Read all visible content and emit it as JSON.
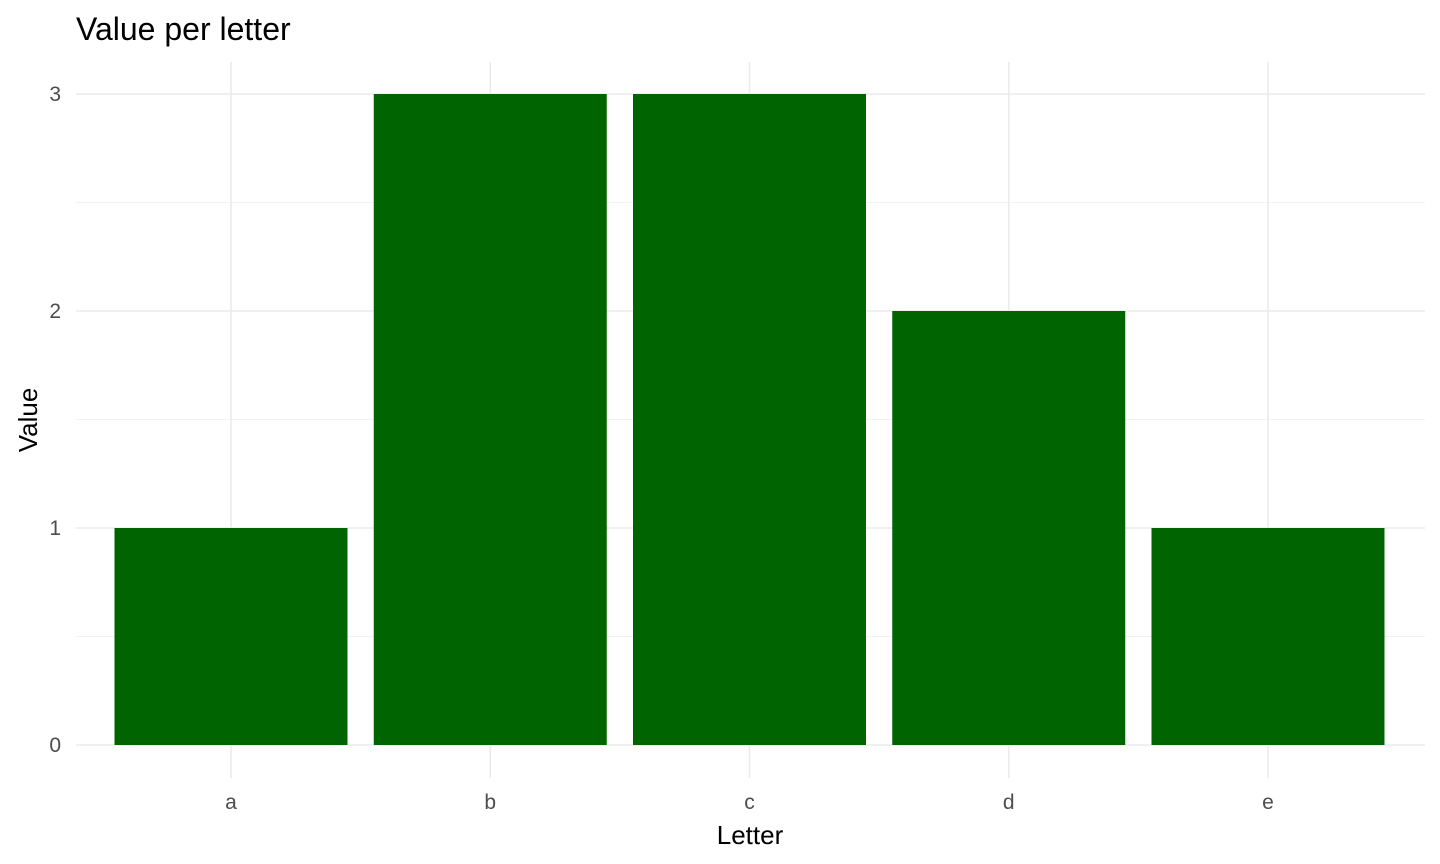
{
  "chart_data": {
    "type": "bar",
    "title": "Value per letter",
    "xlabel": "Letter",
    "ylabel": "Value",
    "categories": [
      "a",
      "b",
      "c",
      "d",
      "e"
    ],
    "values": [
      1,
      3,
      3,
      2,
      1
    ],
    "ylim": [
      0,
      3
    ],
    "yticks": [
      0,
      1,
      2,
      3
    ],
    "bar_color": "#006400",
    "grid": true,
    "legend": "none"
  }
}
